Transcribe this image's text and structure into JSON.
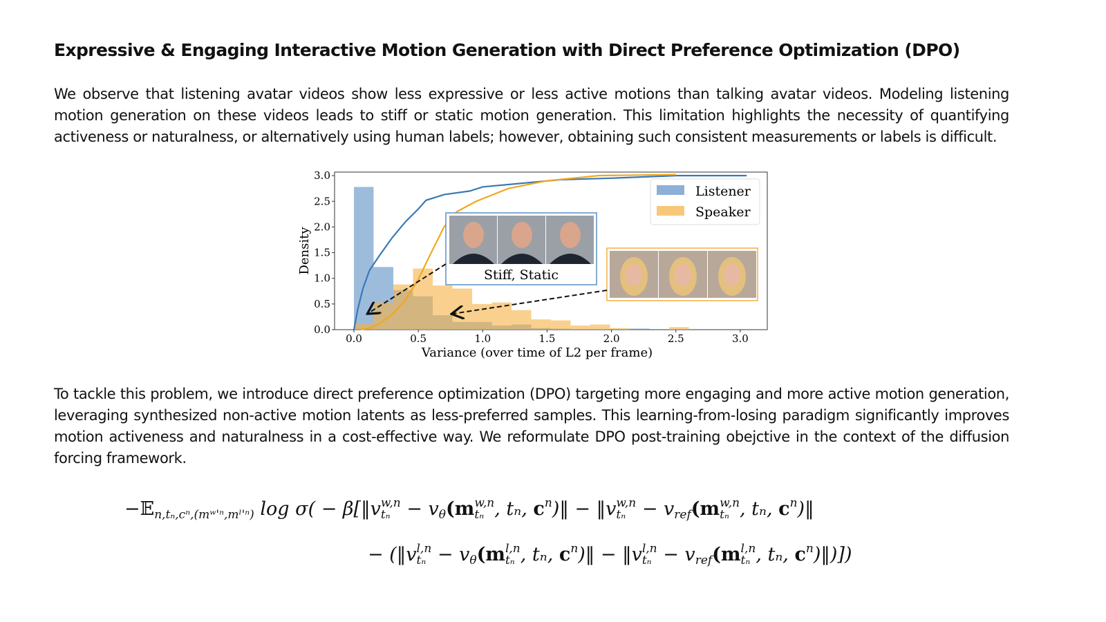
{
  "title": "Expressive & Engaging Interactive Motion Generation with Direct Preference Optimization (DPO)",
  "paragraph1": "We observe that listening avatar videos show less expressive or less active motions than talking avatar videos. Modeling listening motion generation on these videos leads to stiff or static motion generation. This limitation highlights the necessity of quantifying activeness or naturalness, or alternatively using human labels; however, obtaining such consistent measurements or labels is difficult.",
  "paragraph2": "To tackle this problem, we introduce direct preference optimization (DPO) targeting more engaging and more active motion generation, leveraging synthesized non-active motion latents as less-preferred samples. This learning-from-losing paradigm significantly improves motion activeness and naturalness in a cost-effective way. We reformulate DPO post-training obejctive in the context of the diffusion forcing framework.",
  "chart_data": {
    "type": "bar",
    "xlabel": "Variance (over time of L2 per frame)",
    "ylabel": "Density",
    "xlim": [
      -0.15,
      3.2
    ],
    "ylim": [
      0,
      3.0
    ],
    "xticks": [
      "0.0",
      "0.5",
      "1.0",
      "1.5",
      "2.0",
      "2.5",
      "3.0"
    ],
    "yticks": [
      "0.0",
      "0.5",
      "1.0",
      "1.5",
      "2.0",
      "2.5",
      "3.0"
    ],
    "bin_width": 0.153,
    "legend": "top-right",
    "series": [
      {
        "name": "Listener",
        "color": "#5b8fc5",
        "values": [
          2.78,
          1.22,
          0.77,
          0.65,
          0.28,
          0.15,
          0.15,
          0.08,
          0.1,
          0.03,
          0.02,
          0,
          0,
          0,
          0.02,
          0,
          0,
          0
        ]
      },
      {
        "name": "Speaker",
        "color": "#f5b041",
        "values": [
          0.12,
          0.53,
          0.88,
          1.19,
          0.86,
          0.8,
          0.5,
          0.53,
          0.38,
          0.2,
          0.18,
          0.08,
          0.1,
          0.03,
          0,
          0,
          0.05,
          0
        ]
      }
    ],
    "cdf": [
      {
        "name": "Listener",
        "color": "#3a78b5",
        "points": [
          [
            0,
            0
          ],
          [
            0.03,
            0.4
          ],
          [
            0.07,
            0.8
          ],
          [
            0.12,
            1.15
          ],
          [
            0.2,
            1.45
          ],
          [
            0.3,
            1.8
          ],
          [
            0.4,
            2.1
          ],
          [
            0.5,
            2.35
          ],
          [
            0.56,
            2.52
          ],
          [
            0.7,
            2.63
          ],
          [
            0.9,
            2.7
          ],
          [
            1.0,
            2.78
          ],
          [
            1.3,
            2.85
          ],
          [
            1.6,
            2.92
          ],
          [
            2.0,
            2.95
          ],
          [
            2.5,
            3.0
          ],
          [
            3.05,
            3.0
          ]
        ]
      },
      {
        "name": "Speaker",
        "color": "#f0a820",
        "points": [
          [
            0.05,
            0
          ],
          [
            0.12,
            0.03
          ],
          [
            0.2,
            0.12
          ],
          [
            0.3,
            0.3
          ],
          [
            0.4,
            0.58
          ],
          [
            0.5,
            0.98
          ],
          [
            0.6,
            1.5
          ],
          [
            0.7,
            2.0
          ],
          [
            0.8,
            2.3
          ],
          [
            0.95,
            2.5
          ],
          [
            1.2,
            2.75
          ],
          [
            1.5,
            2.9
          ],
          [
            1.9,
            3.0
          ],
          [
            2.5,
            3.02
          ]
        ]
      }
    ],
    "annotations": [
      {
        "text": "Stiff, Static"
      }
    ]
  },
  "equation": {
    "line1": [
      {
        "t": "−𝔼",
        "r": 1,
        "sub": "n,tₙ,cⁿ,(mʷ'ⁿ,mˡ'ⁿ)"
      },
      {
        "t": " log σ( − β[‖v",
        "r": 0,
        "sup": "w,n",
        "sub": "tₙ"
      },
      {
        "t": " − v",
        "sub": "θ"
      },
      {
        "t": "(m",
        "b": 1,
        "sup": "w,n",
        "sub": "tₙ"
      },
      {
        "t": ", tₙ, "
      },
      {
        "t": "c",
        "b": 1,
        "sup": "n"
      },
      {
        "t": ")‖ − ‖v",
        "sup": "w,n",
        "sub": "tₙ"
      },
      {
        "t": " − v",
        "sub": "ref"
      },
      {
        "t": "(m",
        "b": 1,
        "sup": "w,n",
        "sub": "tₙ"
      },
      {
        "t": ", tₙ, "
      },
      {
        "t": "c",
        "b": 1,
        "sup": "n"
      },
      {
        "t": ")‖"
      }
    ],
    "line2": [
      {
        "t": "− (‖v",
        "sup": "l,n",
        "sub": "tₙ"
      },
      {
        "t": " − v",
        "sub": "θ"
      },
      {
        "t": "(m",
        "b": 1,
        "sup": "l,n",
        "sub": "tₙ"
      },
      {
        "t": ", tₙ, "
      },
      {
        "t": "c",
        "b": 1,
        "sup": "n"
      },
      {
        "t": ")‖ − ‖v",
        "sup": "l,n",
        "sub": "tₙ"
      },
      {
        "t": " − v",
        "sub": "ref"
      },
      {
        "t": "(m",
        "b": 1,
        "sup": "l,n",
        "sub": "tₙ"
      },
      {
        "t": ", tₙ, "
      },
      {
        "t": "c",
        "b": 1,
        "sup": "n"
      },
      {
        "t": ")‖)])"
      }
    ]
  }
}
